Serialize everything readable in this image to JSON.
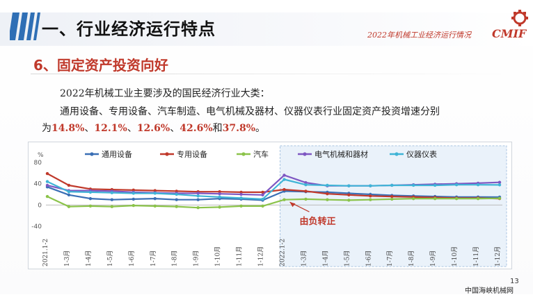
{
  "header": {
    "title": "一、行业经济运行特点",
    "subtitle": "2022年机械工业经济运行情况",
    "logo_text": "CMIF"
  },
  "section": {
    "title": "6、固定资产投资向好"
  },
  "body": {
    "line1": "2022年机械工业主要涉及的国民经济行业大类：",
    "line2": "通用设备、专用设备、汽车制造、电气机械及器材、仪器仪表行业固定资产投资增速分别",
    "line3_prefix": "为",
    "values": [
      "14.8%",
      "12.1%",
      "12.6%",
      "42.6%",
      "37.8%"
    ],
    "sep1": "、",
    "sep2": "、",
    "sep3": "、",
    "and": "和",
    "end": "。"
  },
  "chart_data": {
    "type": "line",
    "unit": "%",
    "ylim": [
      -40,
      80
    ],
    "yticks": [
      80,
      40,
      0,
      -40
    ],
    "x": [
      "2021.1-2",
      "1-3月",
      "1-4月",
      "1-5月",
      "1-6月",
      "1-7月",
      "1-8月",
      "1-9月",
      "1-10月",
      "1-11月",
      "1-12月",
      "2022.1-2",
      "1-3月",
      "1-4月",
      "1-5月",
      "1-6月",
      "1-7月",
      "1-8月",
      "1-9月",
      "1-10月",
      "1-11月",
      "1-12月"
    ],
    "series": [
      {
        "name": "通用设备",
        "color": "#3a6fb5",
        "values": [
          34,
          19,
          12,
          10,
          11,
          12,
          10,
          10,
          12,
          11,
          9,
          26,
          25,
          24,
          22,
          20,
          18,
          17,
          16,
          15,
          15,
          14.8
        ]
      },
      {
        "name": "专用设备",
        "color": "#c0392b",
        "values": [
          59,
          37,
          30,
          29,
          28,
          27,
          26,
          25,
          25,
          24,
          24,
          29,
          26,
          21,
          19,
          17,
          16,
          15,
          14,
          13,
          13,
          12.1
        ]
      },
      {
        "name": "汽车",
        "color": "#8bc34a",
        "values": [
          16,
          -3,
          -2,
          -3,
          -1,
          -2,
          -3,
          -5,
          -4,
          -2,
          -2,
          10,
          11,
          10,
          9,
          10,
          11,
          12,
          12,
          12,
          12,
          12.6
        ]
      },
      {
        "name": "电气机械和器材",
        "color": "#7e57c2",
        "values": [
          37,
          27,
          27,
          26,
          24,
          23,
          22,
          22,
          21,
          20,
          19,
          56,
          42,
          36,
          36,
          36,
          37,
          38,
          39,
          40,
          41,
          42.6
        ]
      },
      {
        "name": "仪器仪表",
        "color": "#3fb4d6",
        "values": [
          44,
          25,
          24,
          23,
          22,
          22,
          20,
          17,
          15,
          13,
          11,
          48,
          38,
          37,
          36,
          36,
          37,
          37,
          37,
          38,
          38,
          37.8
        ]
      }
    ],
    "annotation": "由负转正",
    "grid": false,
    "legend": "top"
  },
  "footer": {
    "page": "13",
    "watermark": "中国海峡机械网"
  }
}
